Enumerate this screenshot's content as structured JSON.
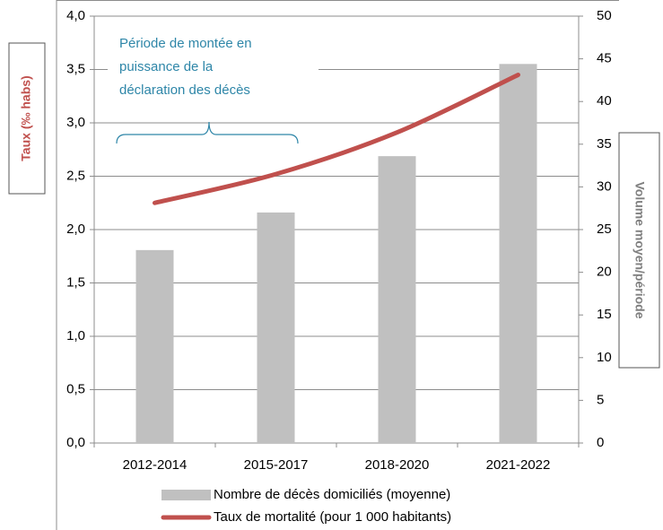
{
  "chart_data": {
    "type": "bar-line",
    "categories": [
      "2012-2014",
      "2015-2017",
      "2018-2020",
      "2021-2022"
    ],
    "series": [
      {
        "name": "Nombre de décès domiciliés (moyenne)",
        "type": "bar",
        "color": "#c0c0c0",
        "axis": "y2",
        "values": [
          22.6,
          27.0,
          33.6,
          44.4
        ]
      },
      {
        "name": "Taux de mortalité (pour 1 000 habitants)",
        "type": "line",
        "color": "#c0504d",
        "axis": "y",
        "values": [
          2.25,
          2.52,
          2.91,
          3.45
        ]
      }
    ],
    "ylabel": "Taux (‰ habs)",
    "y2label": "Volume moyen/période",
    "ylim": [
      0,
      4
    ],
    "yticks": [
      {
        "value": 0,
        "label": "0,0"
      },
      {
        "value": 0.5,
        "label": "0,5"
      },
      {
        "value": 1,
        "label": "1,0"
      },
      {
        "value": 1.5,
        "label": "1,5"
      },
      {
        "value": 2,
        "label": "2,0"
      },
      {
        "value": 2.5,
        "label": "2,5"
      },
      {
        "value": 3,
        "label": "3,0"
      },
      {
        "value": 3.5,
        "label": "3,5"
      },
      {
        "value": 4,
        "label": "4,0"
      }
    ],
    "y2lim": [
      0,
      50
    ],
    "y2ticks": [
      0,
      5,
      10,
      15,
      20,
      25,
      30,
      35,
      40,
      45,
      50
    ],
    "annotation": [
      "Période de montée en",
      "puissance de la",
      "déclaration des décès"
    ],
    "grid": true,
    "legend": "bottom"
  }
}
